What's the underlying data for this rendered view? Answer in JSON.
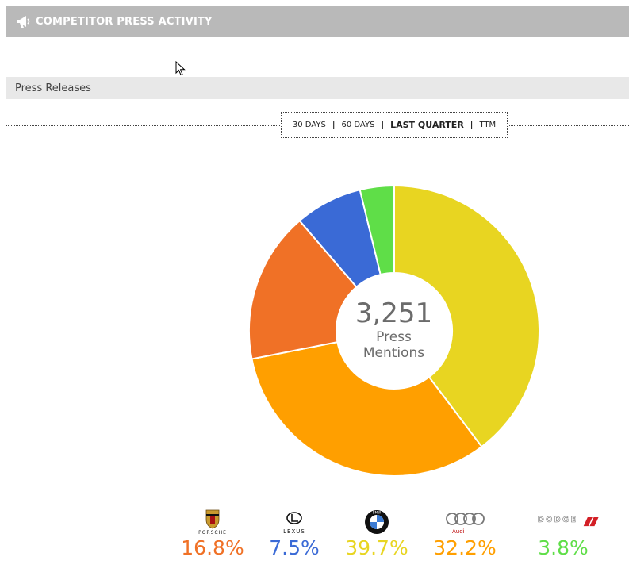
{
  "header": {
    "title": "COMPETITOR PRESS ACTIVITY"
  },
  "subheader": {
    "label": "Press Releases"
  },
  "filters": [
    {
      "label": "30 DAYS",
      "active": false
    },
    {
      "label": "60 DAYS",
      "active": false
    },
    {
      "label": "LAST QUARTER",
      "active": true
    },
    {
      "label": "TTM",
      "active": false
    }
  ],
  "center": {
    "total": "3,251",
    "line1": "Press",
    "line2": "Mentions"
  },
  "chart_data": {
    "type": "pie",
    "donut": true,
    "total": 3251,
    "slices": [
      {
        "brand": "BMW",
        "value": 39.7,
        "label": "39.7%",
        "color": "#e8d521"
      },
      {
        "brand": "Audi",
        "value": 32.2,
        "label": "32.2%",
        "color": "#ff9f00"
      },
      {
        "brand": "Porsche",
        "value": 16.8,
        "label": "16.8%",
        "color": "#f07126"
      },
      {
        "brand": "Lexus",
        "value": 7.5,
        "label": "7.5%",
        "color": "#3a6ad6"
      },
      {
        "brand": "Dodge",
        "value": 3.8,
        "label": "3.8%",
        "color": "#5fde48"
      }
    ]
  },
  "brands": [
    {
      "key": "porsche",
      "logo_text": "PORSCHE",
      "pct": "16.8%",
      "color": "#f07126"
    },
    {
      "key": "lexus",
      "logo_text": "LEXUS",
      "pct": "7.5%",
      "color": "#3a6ad6"
    },
    {
      "key": "bmw",
      "logo_text": "BMW",
      "pct": "39.7%",
      "color": "#e8d521"
    },
    {
      "key": "audi",
      "logo_text": "Audi",
      "pct": "32.2%",
      "color": "#ff9f00"
    },
    {
      "key": "dodge",
      "logo_text": "DODGE",
      "pct": "3.8%",
      "color": "#5fde48"
    }
  ]
}
